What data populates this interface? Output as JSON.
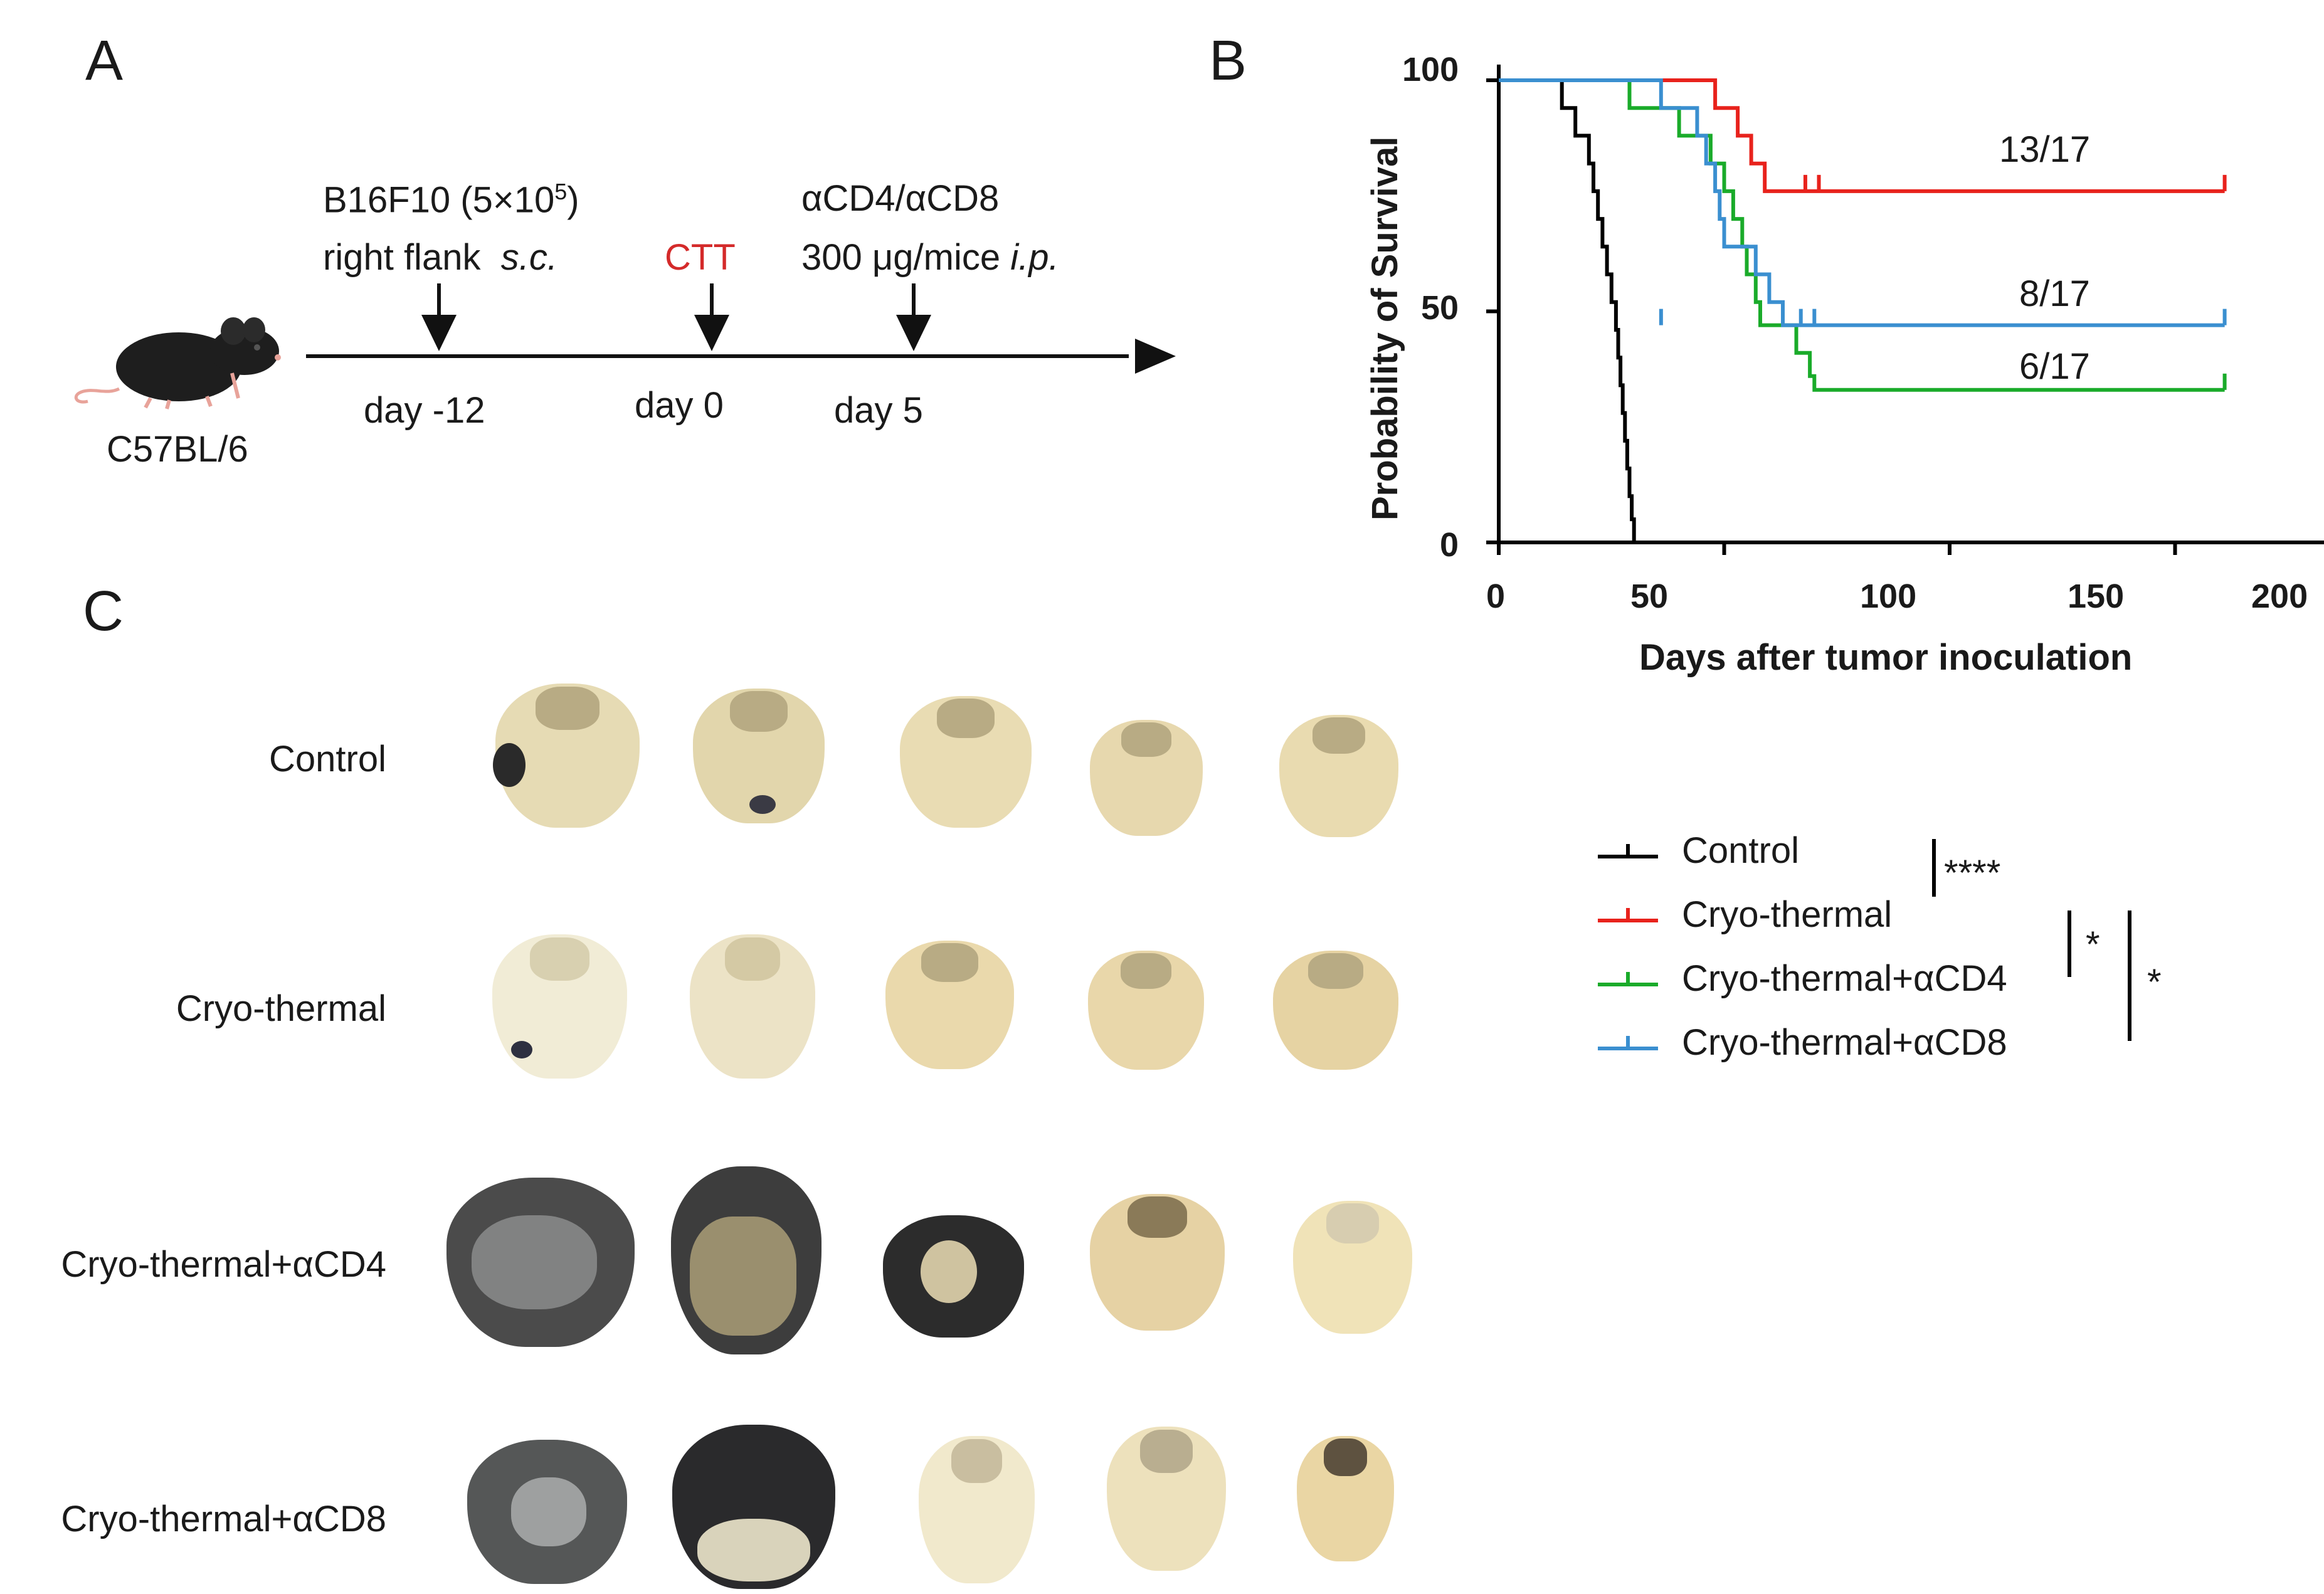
{
  "panels": {
    "a": "A",
    "b": "B",
    "c": "C"
  },
  "timeline": {
    "mouse_strain": "C57BL/6",
    "step1_line1": "B16F10 (5×10",
    "step1_sup": "5",
    "step1_close": ")",
    "step1_line2": "right flank",
    "step1_route": "s.c.",
    "step1_day": "day -12",
    "step2_label": "CTT",
    "step2_day": "day 0",
    "step3_line1": "αCD4/αCD8",
    "step3_line2": "300 μg/mice",
    "step3_route": "i.p.",
    "step3_day": "day 5"
  },
  "chart_data": {
    "type": "line",
    "subtype": "kaplan-meier",
    "title": "",
    "xlabel": "Days after tumor inoculation",
    "ylabel": "Probability of Survival",
    "xlim": [
      0,
      200
    ],
    "ylim": [
      0,
      100
    ],
    "xticks": [
      0,
      50,
      100,
      150,
      200
    ],
    "yticks": [
      0,
      50,
      100
    ],
    "series": [
      {
        "name": "Control",
        "color": "#000000",
        "steps": [
          [
            0,
            100
          ],
          [
            14,
            100
          ],
          [
            14,
            94
          ],
          [
            17,
            94
          ],
          [
            17,
            88
          ],
          [
            20,
            88
          ],
          [
            20,
            82
          ],
          [
            21,
            82
          ],
          [
            21,
            76
          ],
          [
            22,
            76
          ],
          [
            22,
            70
          ],
          [
            23,
            70
          ],
          [
            23,
            64
          ],
          [
            24,
            64
          ],
          [
            24,
            58
          ],
          [
            25,
            58
          ],
          [
            25,
            52
          ],
          [
            26,
            52
          ],
          [
            26,
            46
          ],
          [
            26.5,
            46
          ],
          [
            26.5,
            40
          ],
          [
            27,
            40
          ],
          [
            27,
            34
          ],
          [
            27.5,
            34
          ],
          [
            27.5,
            28
          ],
          [
            28,
            28
          ],
          [
            28,
            22
          ],
          [
            28.5,
            22
          ],
          [
            28.5,
            16
          ],
          [
            29,
            16
          ],
          [
            29,
            10
          ],
          [
            29.5,
            10
          ],
          [
            29.5,
            5
          ],
          [
            30,
            5
          ],
          [
            30,
            0
          ]
        ],
        "censor": []
      },
      {
        "name": "Cryo-thermal",
        "color": "#e8221c",
        "steps": [
          [
            0,
            100
          ],
          [
            48,
            100
          ],
          [
            48,
            94
          ],
          [
            53,
            94
          ],
          [
            53,
            88
          ],
          [
            56,
            88
          ],
          [
            56,
            82
          ],
          [
            59,
            82
          ],
          [
            59,
            76
          ],
          [
            161,
            76
          ]
        ],
        "censor": [
          68,
          71,
          161
        ],
        "censor_y": 76
      },
      {
        "name": "Cryo-thermal+αCD4",
        "color": "#1aab2a",
        "steps": [
          [
            0,
            100
          ],
          [
            29,
            100
          ],
          [
            29,
            94
          ],
          [
            40,
            94
          ],
          [
            40,
            88
          ],
          [
            47,
            88
          ],
          [
            47,
            82
          ],
          [
            50,
            82
          ],
          [
            50,
            76
          ],
          [
            52,
            76
          ],
          [
            52,
            70
          ],
          [
            54,
            70
          ],
          [
            54,
            64
          ],
          [
            55,
            64
          ],
          [
            55,
            58
          ],
          [
            57,
            58
          ],
          [
            57,
            52
          ],
          [
            58,
            52
          ],
          [
            58,
            47
          ],
          [
            66,
            47
          ],
          [
            66,
            41
          ],
          [
            69,
            41
          ],
          [
            69,
            36
          ],
          [
            70,
            36
          ],
          [
            70,
            33
          ],
          [
            161,
            33
          ]
        ],
        "censor": [
          161
        ],
        "censor_y": 33
      },
      {
        "name": "Cryo-thermal+αCD8",
        "color": "#3a8fd0",
        "steps": [
          [
            0,
            100
          ],
          [
            36,
            100
          ],
          [
            36,
            94
          ],
          [
            44,
            94
          ],
          [
            44,
            88
          ],
          [
            46,
            88
          ],
          [
            46,
            82
          ],
          [
            48,
            82
          ],
          [
            48,
            76
          ],
          [
            49,
            76
          ],
          [
            49,
            70
          ],
          [
            50,
            70
          ],
          [
            50,
            64
          ],
          [
            57,
            64
          ],
          [
            57,
            58
          ],
          [
            60,
            58
          ],
          [
            60,
            52
          ],
          [
            63,
            52
          ],
          [
            63,
            47
          ],
          [
            161,
            47
          ]
        ],
        "censor": [
          36,
          67,
          70,
          161
        ],
        "censor_y": 47
      }
    ],
    "fractions": [
      "13/17",
      "8/17",
      "6/17"
    ],
    "significance": [
      "****",
      "*",
      "*"
    ]
  },
  "lungs": {
    "rows": [
      "Control",
      "Cryo-thermal",
      "Cryo-thermal+αCD4",
      "Cryo-thermal+αCD8"
    ]
  }
}
